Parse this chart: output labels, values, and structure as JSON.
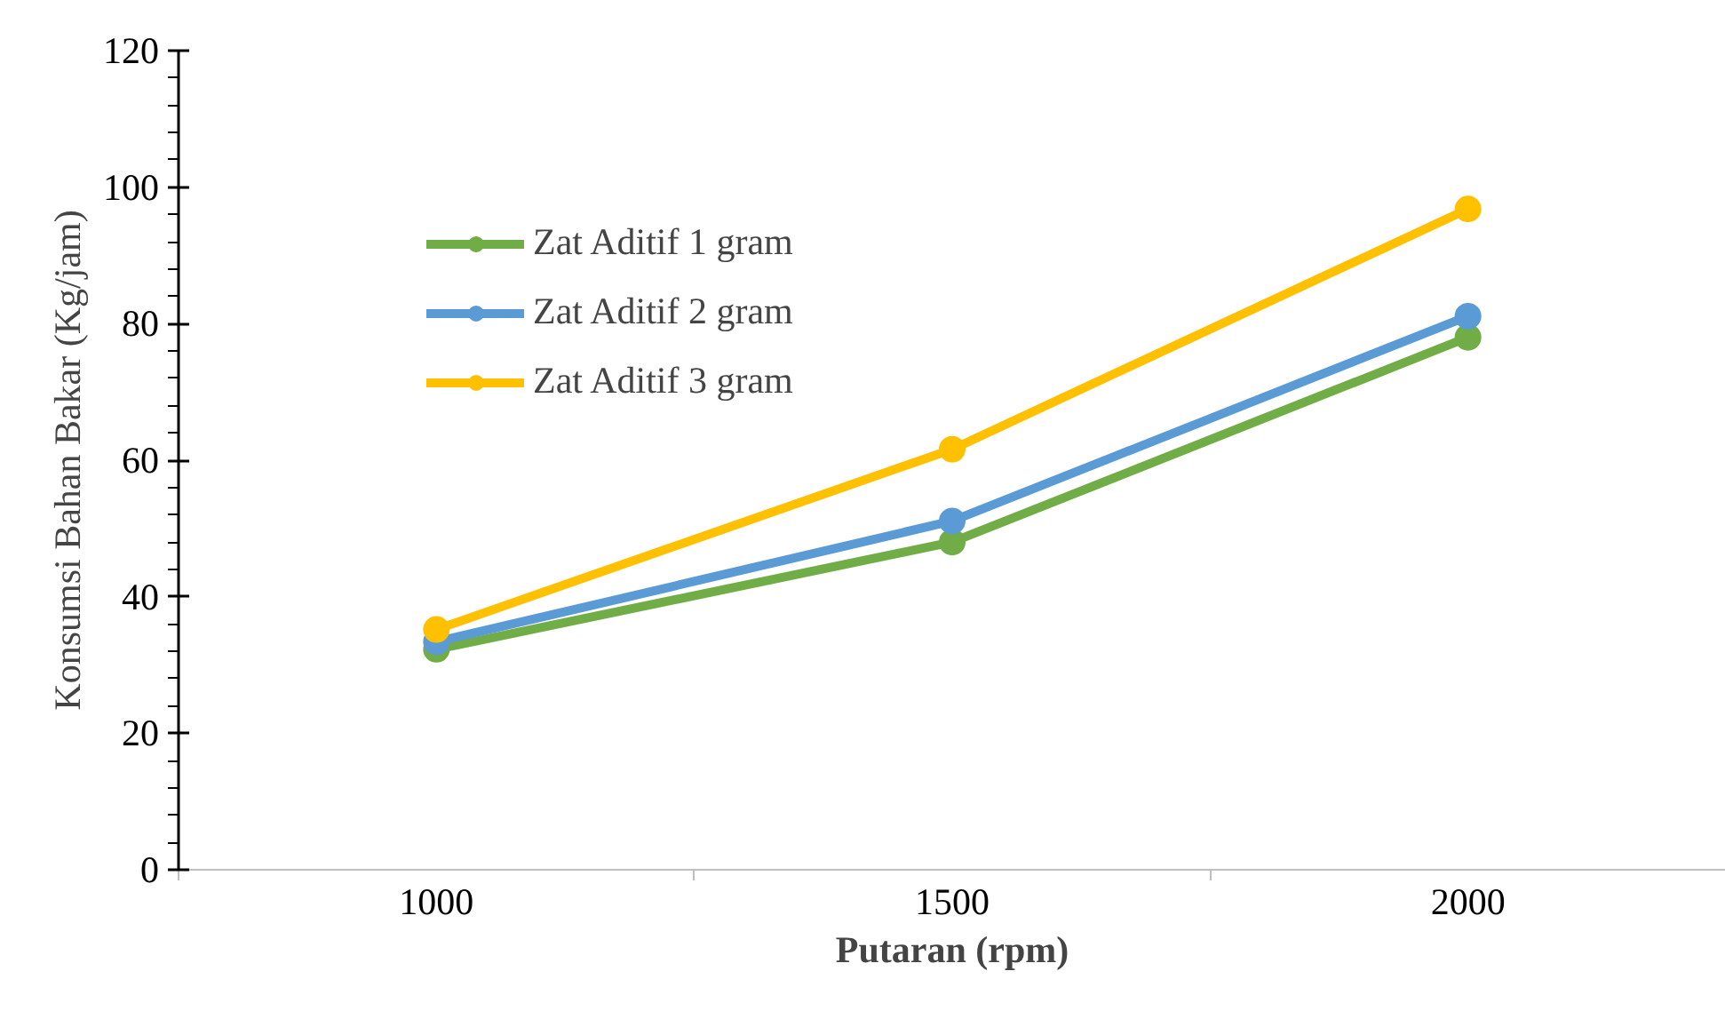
{
  "chart_data": {
    "type": "line",
    "xlabel": "Putaran (rpm)",
    "ylabel": "Konsumsi Bahan Bakar (Kg/jam)",
    "categories": [
      "1000",
      "1500",
      "2000"
    ],
    "series": [
      {
        "name": "Zat Aditif 1 gram",
        "color": "#70ad47",
        "values": [
          32.3,
          48,
          78
        ]
      },
      {
        "name": "Zat Aditif 2 gram",
        "color": "#5b9bd5",
        "values": [
          33.4,
          51.1,
          81.1
        ]
      },
      {
        "name": "Zat Aditif 3 gram",
        "color": "#ffc000",
        "values": [
          35.2,
          61.6,
          96.8
        ]
      }
    ],
    "ylim": [
      0,
      120
    ],
    "yticks": [
      0,
      20,
      40,
      60,
      80,
      100,
      120
    ],
    "grid": false,
    "legend": "top left",
    "marker": "circle",
    "line_style": "solid"
  }
}
